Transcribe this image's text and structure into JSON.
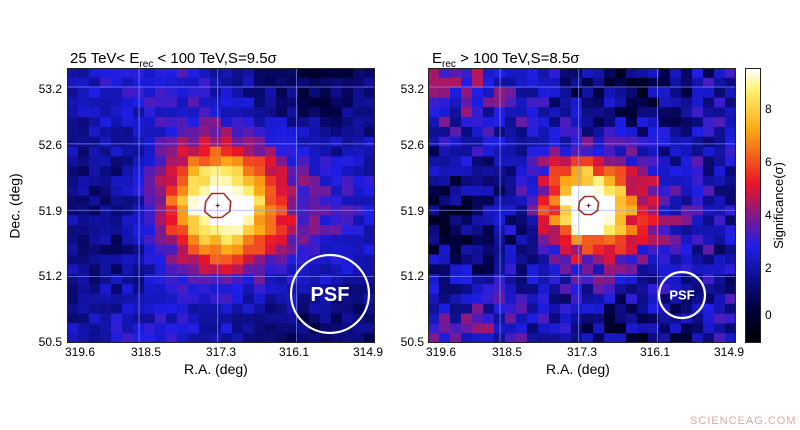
{
  "chart_data": [
    {
      "type": "heatmap",
      "title_pre": "25 TeV< E",
      "title_sub": "rec",
      "title_post": " < 100 TeV,S=9.5σ",
      "xlabel": "R.A. (deg)",
      "ylabel": "Dec. (deg)",
      "xticks": [
        "319.6",
        "318.5",
        "317.3",
        "316.1",
        "314.9"
      ],
      "yticks": [
        "53.2",
        "52.6",
        "51.9",
        "51.2",
        "50.5"
      ],
      "xlim": [
        319.6,
        314.9
      ],
      "ylim": [
        50.5,
        53.4
      ],
      "peak_significance": 9.5,
      "source_center": {
        "ra": 317.3,
        "dec": 51.95
      },
      "psf_label": "PSF",
      "grid": true
    },
    {
      "type": "heatmap",
      "title_pre": "E",
      "title_sub": "rec",
      "title_post": " > 100 TeV,S=8.5σ",
      "xlabel": "R.A. (deg)",
      "ylabel": "",
      "xticks": [
        "319.6",
        "318.5",
        "317.3",
        "316.1",
        "314.9"
      ],
      "yticks": [
        "53.2",
        "52.6",
        "51.9",
        "51.2",
        "50.5"
      ],
      "xlim": [
        319.6,
        314.9
      ],
      "ylim": [
        50.5,
        53.4
      ],
      "peak_significance": 8.5,
      "source_center": {
        "ra": 317.15,
        "dec": 51.95
      },
      "psf_label": "PSF",
      "grid": true
    }
  ],
  "colorbar": {
    "label": "Significance(σ)",
    "ticks": [
      "8",
      "6",
      "4",
      "2",
      "0"
    ],
    "range": [
      -1,
      9.4
    ]
  },
  "watermark": "SCIENCEAG.COM"
}
